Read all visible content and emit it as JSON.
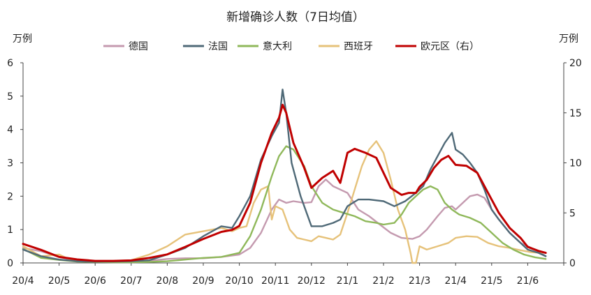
{
  "chart_data": {
    "type": "line",
    "title": "新增确诊人数（7日均值）",
    "left_axis_unit": "万例",
    "right_axis_unit": "万例",
    "x_ticks": [
      "20/4",
      "20/5",
      "20/6",
      "20/7",
      "20/8",
      "20/9",
      "20/10",
      "20/11",
      "20/12",
      "21/1",
      "21/2",
      "21/3",
      "21/4",
      "21/5",
      "21/6"
    ],
    "ylim_left": [
      0,
      6
    ],
    "yticks_left": [
      "0",
      "1",
      "2",
      "3",
      "4",
      "5",
      "6"
    ],
    "ylim_right": [
      0,
      20
    ],
    "yticks_right": [
      "0",
      "5",
      "10",
      "15",
      "20"
    ],
    "grid": false,
    "legend_position": "top",
    "series": [
      {
        "name": "德国",
        "axis": "left",
        "color": "#c49aaf",
        "points": [
          [
            0,
            0.45
          ],
          [
            0.5,
            0.35
          ],
          [
            1,
            0.18
          ],
          [
            1.5,
            0.06
          ],
          [
            2,
            0.04
          ],
          [
            2.5,
            0.03
          ],
          [
            3,
            0.04
          ],
          [
            3.5,
            0.06
          ],
          [
            4,
            0.12
          ],
          [
            4.5,
            0.14
          ],
          [
            5,
            0.14
          ],
          [
            5.5,
            0.18
          ],
          [
            6,
            0.25
          ],
          [
            6.3,
            0.45
          ],
          [
            6.6,
            0.9
          ],
          [
            6.9,
            1.6
          ],
          [
            7.1,
            1.9
          ],
          [
            7.3,
            1.8
          ],
          [
            7.5,
            1.85
          ],
          [
            7.8,
            1.8
          ],
          [
            8,
            1.82
          ],
          [
            8.2,
            2.3
          ],
          [
            8.4,
            2.5
          ],
          [
            8.6,
            2.3
          ],
          [
            8.8,
            2.2
          ],
          [
            9,
            2.1
          ],
          [
            9.3,
            1.6
          ],
          [
            9.6,
            1.4
          ],
          [
            9.9,
            1.15
          ],
          [
            10.2,
            0.9
          ],
          [
            10.5,
            0.75
          ],
          [
            10.8,
            0.72
          ],
          [
            11,
            0.8
          ],
          [
            11.2,
            1.0
          ],
          [
            11.5,
            1.4
          ],
          [
            11.7,
            1.65
          ],
          [
            11.9,
            1.7
          ],
          [
            12,
            1.6
          ],
          [
            12.2,
            1.8
          ],
          [
            12.4,
            2.0
          ],
          [
            12.6,
            2.05
          ],
          [
            12.8,
            1.95
          ],
          [
            13,
            1.6
          ],
          [
            13.2,
            1.3
          ],
          [
            13.5,
            0.9
          ],
          [
            13.8,
            0.6
          ],
          [
            14,
            0.5
          ],
          [
            14.3,
            0.35
          ],
          [
            14.5,
            0.2
          ]
        ]
      },
      {
        "name": "法国",
        "axis": "left",
        "color": "#4f6977",
        "points": [
          [
            0,
            0.4
          ],
          [
            0.5,
            0.2
          ],
          [
            1,
            0.1
          ],
          [
            1.5,
            0.05
          ],
          [
            2,
            0.04
          ],
          [
            2.5,
            0.04
          ],
          [
            3,
            0.05
          ],
          [
            3.5,
            0.08
          ],
          [
            4,
            0.25
          ],
          [
            4.5,
            0.45
          ],
          [
            5,
            0.8
          ],
          [
            5.5,
            1.1
          ],
          [
            5.8,
            1.05
          ],
          [
            6,
            1.4
          ],
          [
            6.3,
            2.0
          ],
          [
            6.6,
            3.1
          ],
          [
            6.9,
            3.8
          ],
          [
            7.1,
            4.2
          ],
          [
            7.2,
            5.2
          ],
          [
            7.3,
            4.5
          ],
          [
            7.45,
            3.0
          ],
          [
            7.7,
            2.0
          ],
          [
            8,
            1.1
          ],
          [
            8.3,
            1.1
          ],
          [
            8.6,
            1.2
          ],
          [
            8.8,
            1.3
          ],
          [
            9,
            1.7
          ],
          [
            9.3,
            1.9
          ],
          [
            9.6,
            1.9
          ],
          [
            10,
            1.85
          ],
          [
            10.3,
            1.7
          ],
          [
            10.6,
            1.85
          ],
          [
            10.9,
            2.1
          ],
          [
            11.1,
            2.3
          ],
          [
            11.3,
            2.8
          ],
          [
            11.5,
            3.2
          ],
          [
            11.7,
            3.6
          ],
          [
            11.9,
            3.9
          ],
          [
            12,
            3.4
          ],
          [
            12.2,
            3.25
          ],
          [
            12.4,
            3.0
          ],
          [
            12.6,
            2.7
          ],
          [
            12.8,
            2.2
          ],
          [
            13,
            1.6
          ],
          [
            13.2,
            1.3
          ],
          [
            13.5,
            0.9
          ],
          [
            13.8,
            0.6
          ],
          [
            14,
            0.4
          ],
          [
            14.3,
            0.3
          ],
          [
            14.5,
            0.2
          ]
        ]
      },
      {
        "name": "意大利",
        "axis": "left",
        "color": "#8fb85a",
        "points": [
          [
            0,
            0.42
          ],
          [
            0.5,
            0.15
          ],
          [
            1,
            0.09
          ],
          [
            1.5,
            0.04
          ],
          [
            2,
            0.03
          ],
          [
            2.5,
            0.02
          ],
          [
            3,
            0.02
          ],
          [
            3.5,
            0.03
          ],
          [
            4,
            0.05
          ],
          [
            4.5,
            0.1
          ],
          [
            5,
            0.15
          ],
          [
            5.5,
            0.18
          ],
          [
            6,
            0.3
          ],
          [
            6.3,
            0.8
          ],
          [
            6.6,
            1.6
          ],
          [
            6.9,
            2.6
          ],
          [
            7.1,
            3.2
          ],
          [
            7.3,
            3.5
          ],
          [
            7.5,
            3.4
          ],
          [
            7.8,
            2.9
          ],
          [
            8,
            2.3
          ],
          [
            8.3,
            1.8
          ],
          [
            8.6,
            1.6
          ],
          [
            8.9,
            1.5
          ],
          [
            9.2,
            1.4
          ],
          [
            9.5,
            1.25
          ],
          [
            9.8,
            1.2
          ],
          [
            10,
            1.15
          ],
          [
            10.3,
            1.2
          ],
          [
            10.5,
            1.45
          ],
          [
            10.7,
            1.8
          ],
          [
            10.9,
            2.0
          ],
          [
            11.1,
            2.2
          ],
          [
            11.3,
            2.3
          ],
          [
            11.5,
            2.2
          ],
          [
            11.7,
            1.8
          ],
          [
            11.9,
            1.6
          ],
          [
            12.1,
            1.45
          ],
          [
            12.4,
            1.35
          ],
          [
            12.7,
            1.2
          ],
          [
            13,
            0.9
          ],
          [
            13.3,
            0.6
          ],
          [
            13.6,
            0.4
          ],
          [
            13.9,
            0.25
          ],
          [
            14.2,
            0.17
          ],
          [
            14.5,
            0.12
          ]
        ]
      },
      {
        "name": "西班牙",
        "axis": "left",
        "color": "#e6c27a",
        "points": [
          [
            0,
            0.5
          ],
          [
            0.5,
            0.2
          ],
          [
            1,
            0.25
          ],
          [
            1.3,
            0.1
          ],
          [
            1.6,
            0.06
          ],
          [
            2,
            0.05
          ],
          [
            2.5,
            0.06
          ],
          [
            3,
            0.08
          ],
          [
            3.5,
            0.25
          ],
          [
            4,
            0.5
          ],
          [
            4.5,
            0.85
          ],
          [
            5,
            0.95
          ],
          [
            5.5,
            1.05
          ],
          [
            5.8,
            0.95
          ],
          [
            6,
            1.05
          ],
          [
            6.2,
            1.1
          ],
          [
            6.4,
            1.8
          ],
          [
            6.6,
            2.2
          ],
          [
            6.8,
            2.3
          ],
          [
            6.9,
            1.3
          ],
          [
            7,
            1.7
          ],
          [
            7.2,
            1.6
          ],
          [
            7.4,
            1.0
          ],
          [
            7.6,
            0.75
          ],
          [
            7.8,
            0.7
          ],
          [
            8,
            0.65
          ],
          [
            8.2,
            0.8
          ],
          [
            8.4,
            0.75
          ],
          [
            8.6,
            0.7
          ],
          [
            8.8,
            0.85
          ],
          [
            9,
            1.5
          ],
          [
            9.2,
            2.2
          ],
          [
            9.4,
            2.9
          ],
          [
            9.6,
            3.4
          ],
          [
            9.8,
            3.65
          ],
          [
            10,
            3.3
          ],
          [
            10.2,
            2.5
          ],
          [
            10.4,
            1.6
          ],
          [
            10.6,
            1.0
          ],
          [
            10.75,
            0.3
          ],
          [
            10.8,
            0.0
          ],
          [
            10.9,
            0.0
          ],
          [
            11,
            0.5
          ],
          [
            11.2,
            0.4
          ],
          [
            11.5,
            0.5
          ],
          [
            11.8,
            0.6
          ],
          [
            12,
            0.75
          ],
          [
            12.3,
            0.8
          ],
          [
            12.6,
            0.78
          ],
          [
            12.9,
            0.6
          ],
          [
            13.2,
            0.5
          ],
          [
            13.5,
            0.45
          ],
          [
            13.8,
            0.38
          ],
          [
            14.1,
            0.32
          ],
          [
            14.4,
            0.3
          ]
        ]
      },
      {
        "name": "欧元区（右）",
        "axis": "right",
        "color": "#c00000",
        "points": [
          [
            0,
            1.9
          ],
          [
            0.5,
            1.3
          ],
          [
            1,
            0.6
          ],
          [
            1.5,
            0.35
          ],
          [
            2,
            0.2
          ],
          [
            2.5,
            0.2
          ],
          [
            3,
            0.25
          ],
          [
            3.5,
            0.5
          ],
          [
            4,
            0.85
          ],
          [
            4.5,
            1.6
          ],
          [
            5,
            2.4
          ],
          [
            5.5,
            3.1
          ],
          [
            5.8,
            3.3
          ],
          [
            6,
            3.7
          ],
          [
            6.3,
            6.0
          ],
          [
            6.6,
            10.0
          ],
          [
            6.9,
            13.0
          ],
          [
            7.1,
            14.5
          ],
          [
            7.2,
            15.8
          ],
          [
            7.3,
            15.0
          ],
          [
            7.5,
            12.0
          ],
          [
            7.8,
            9.5
          ],
          [
            8,
            7.5
          ],
          [
            8.3,
            8.5
          ],
          [
            8.6,
            9.2
          ],
          [
            8.8,
            8.0
          ],
          [
            9,
            11.0
          ],
          [
            9.2,
            11.4
          ],
          [
            9.5,
            11.0
          ],
          [
            9.8,
            10.5
          ],
          [
            10,
            9.0
          ],
          [
            10.2,
            7.5
          ],
          [
            10.5,
            6.8
          ],
          [
            10.7,
            7.0
          ],
          [
            10.9,
            7.0
          ],
          [
            11,
            7.6
          ],
          [
            11.2,
            8.3
          ],
          [
            11.4,
            9.5
          ],
          [
            11.6,
            10.3
          ],
          [
            11.8,
            10.7
          ],
          [
            12,
            9.8
          ],
          [
            12.3,
            9.7
          ],
          [
            12.6,
            9.0
          ],
          [
            12.9,
            7.0
          ],
          [
            13.2,
            5.0
          ],
          [
            13.5,
            3.5
          ],
          [
            13.8,
            2.5
          ],
          [
            14,
            1.6
          ],
          [
            14.3,
            1.2
          ],
          [
            14.5,
            1.0
          ]
        ]
      }
    ]
  }
}
